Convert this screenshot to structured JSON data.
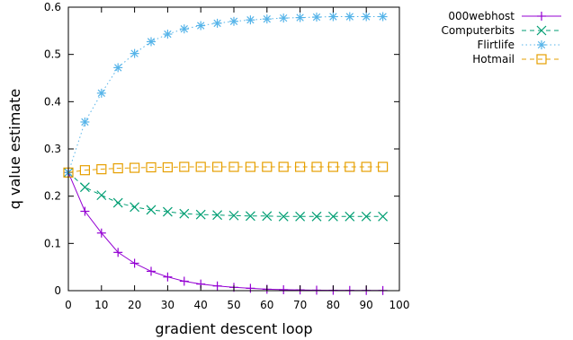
{
  "chart_data": {
    "type": "line",
    "title": "",
    "xlabel": "gradient descent loop",
    "ylabel": "q value estimate",
    "xlim": [
      0,
      100
    ],
    "ylim": [
      0,
      0.6
    ],
    "xticks": [
      "0",
      "10",
      "20",
      "30",
      "40",
      "50",
      "60",
      "70",
      "80",
      "90",
      "100"
    ],
    "yticks": [
      "0",
      "0.1",
      "0.2",
      "0.3",
      "0.4",
      "0.5",
      "0.6"
    ],
    "x": [
      0,
      5,
      10,
      15,
      20,
      25,
      30,
      35,
      40,
      45,
      50,
      55,
      60,
      65,
      70,
      75,
      80,
      85,
      90,
      95
    ],
    "legend_position": "top-right outside",
    "grid": false,
    "series": [
      {
        "name": "000webhost",
        "color": "#9400d3",
        "marker": "plus",
        "line": "solid",
        "values": [
          0.25,
          0.168,
          0.122,
          0.081,
          0.058,
          0.041,
          0.029,
          0.02,
          0.014,
          0.01,
          0.007,
          0.005,
          0.003,
          0.002,
          0.0015,
          0.001,
          0.0008,
          0.0005,
          0.0004,
          0.0003
        ]
      },
      {
        "name": "Computerbits",
        "color": "#009e73",
        "marker": "x",
        "line": "dashed",
        "values": [
          0.25,
          0.219,
          0.202,
          0.186,
          0.177,
          0.171,
          0.167,
          0.163,
          0.161,
          0.16,
          0.159,
          0.158,
          0.158,
          0.157,
          0.157,
          0.157,
          0.157,
          0.157,
          0.157,
          0.157
        ]
      },
      {
        "name": "Flirtlife",
        "color": "#56b4e9",
        "marker": "star",
        "line": "dotted",
        "values": [
          0.25,
          0.357,
          0.418,
          0.472,
          0.502,
          0.527,
          0.543,
          0.554,
          0.561,
          0.566,
          0.57,
          0.573,
          0.575,
          0.577,
          0.578,
          0.579,
          0.58,
          0.58,
          0.58,
          0.58
        ]
      },
      {
        "name": "Hotmail",
        "color": "#e69f00",
        "marker": "square",
        "line": "dashed",
        "values": [
          0.25,
          0.255,
          0.257,
          0.259,
          0.26,
          0.261,
          0.261,
          0.262,
          0.262,
          0.262,
          0.262,
          0.262,
          0.262,
          0.262,
          0.262,
          0.262,
          0.262,
          0.262,
          0.262,
          0.262
        ]
      }
    ]
  }
}
